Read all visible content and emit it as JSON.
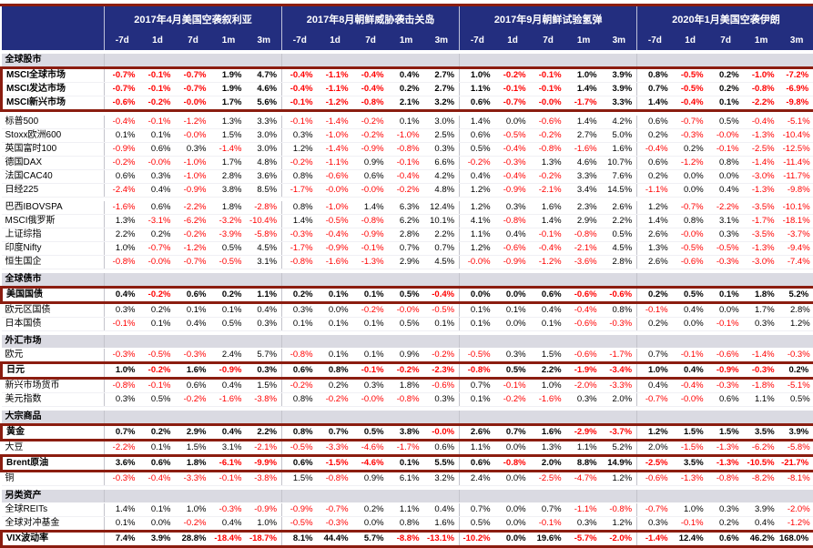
{
  "colors": {
    "header_bg": "#232E7F",
    "highlight_border": "#8B1D10",
    "negative_value": "#FF0000",
    "section_row_bg": "#DADAE2",
    "positive_value": "#000000"
  },
  "chart_data": {
    "type": "table",
    "events": [
      "2017年4月美国空袭叙利亚",
      "2017年8月朝鲜威胁袭击关岛",
      "2017年9月朝鲜试验氢弹",
      "2020年1月美国空袭伊朗"
    ],
    "periods": [
      "-7d",
      "1d",
      "7d",
      "1m",
      "3m"
    ],
    "sections": [
      {
        "label": "全球股市",
        "groups": [
          [
            {
              "label": "MSCI全球市场",
              "highlight": true,
              "values": [
                "-0.7%",
                "-0.1%",
                "-0.7%",
                "1.9%",
                "4.7%",
                "-0.4%",
                "-1.1%",
                "-0.4%",
                "0.4%",
                "2.7%",
                "1.0%",
                "-0.2%",
                "-0.1%",
                "1.0%",
                "3.9%",
                "0.8%",
                "-0.5%",
                "0.2%",
                "-1.0%",
                "-7.2%"
              ]
            },
            {
              "label": "MSCI发达市场",
              "highlight": true,
              "values": [
                "-0.7%",
                "-0.1%",
                "-0.7%",
                "1.9%",
                "4.6%",
                "-0.4%",
                "-1.1%",
                "-0.4%",
                "0.2%",
                "2.7%",
                "1.1%",
                "-0.1%",
                "-0.1%",
                "1.4%",
                "3.9%",
                "0.7%",
                "-0.5%",
                "0.2%",
                "-0.8%",
                "-6.9%"
              ]
            },
            {
              "label": "MSCI新兴市场",
              "highlight": true,
              "values": [
                "-0.6%",
                "-0.2%",
                "-0.0%",
                "1.7%",
                "5.6%",
                "-0.1%",
                "-1.2%",
                "-0.8%",
                "2.1%",
                "3.2%",
                "0.6%",
                "-0.7%",
                "-0.0%",
                "-1.7%",
                "3.3%",
                "1.4%",
                "-0.4%",
                "0.1%",
                "-2.2%",
                "-9.8%"
              ]
            }
          ],
          [
            {
              "label": "标普500",
              "highlight": false,
              "values": [
                "-0.4%",
                "-0.1%",
                "-1.2%",
                "1.3%",
                "3.3%",
                "-0.1%",
                "-1.4%",
                "-0.2%",
                "0.1%",
                "3.0%",
                "1.4%",
                "0.0%",
                "-0.6%",
                "1.4%",
                "4.2%",
                "0.6%",
                "-0.7%",
                "0.5%",
                "-0.4%",
                "-5.1%"
              ]
            },
            {
              "label": "Stoxx欧洲600",
              "highlight": false,
              "values": [
                "0.1%",
                "0.1%",
                "-0.0%",
                "1.5%",
                "3.0%",
                "0.3%",
                "-1.0%",
                "-0.2%",
                "-1.0%",
                "2.5%",
                "0.6%",
                "-0.5%",
                "-0.2%",
                "2.7%",
                "5.0%",
                "0.2%",
                "-0.3%",
                "-0.0%",
                "-1.3%",
                "-10.4%"
              ]
            },
            {
              "label": "英国富时100",
              "highlight": false,
              "values": [
                "-0.9%",
                "0.6%",
                "0.3%",
                "-1.4%",
                "3.0%",
                "1.2%",
                "-1.4%",
                "-0.9%",
                "-0.8%",
                "0.3%",
                "0.5%",
                "-0.4%",
                "-0.8%",
                "-1.6%",
                "1.6%",
                "-0.4%",
                "0.2%",
                "-0.1%",
                "-2.5%",
                "-12.5%"
              ]
            },
            {
              "label": "德国DAX",
              "highlight": false,
              "values": [
                "-0.2%",
                "-0.0%",
                "-1.0%",
                "1.7%",
                "4.8%",
                "-0.2%",
                "-1.1%",
                "0.9%",
                "-0.1%",
                "6.6%",
                "-0.2%",
                "-0.3%",
                "1.3%",
                "4.6%",
                "10.7%",
                "0.6%",
                "-1.2%",
                "0.8%",
                "-1.4%",
                "-11.4%"
              ]
            },
            {
              "label": "法国CAC40",
              "highlight": false,
              "values": [
                "0.6%",
                "0.3%",
                "-1.0%",
                "2.8%",
                "3.6%",
                "0.8%",
                "-0.6%",
                "0.6%",
                "-0.4%",
                "4.2%",
                "0.4%",
                "-0.4%",
                "-0.2%",
                "3.3%",
                "7.6%",
                "0.2%",
                "0.0%",
                "0.0%",
                "-3.0%",
                "-11.7%"
              ]
            },
            {
              "label": "日经225",
              "highlight": false,
              "values": [
                "-2.4%",
                "0.4%",
                "-0.9%",
                "3.8%",
                "8.5%",
                "-1.7%",
                "-0.0%",
                "-0.0%",
                "-0.2%",
                "4.8%",
                "1.2%",
                "-0.9%",
                "-2.1%",
                "3.4%",
                "14.5%",
                "-1.1%",
                "0.0%",
                "0.4%",
                "-1.3%",
                "-9.8%"
              ]
            }
          ],
          [
            {
              "label": "巴西IBOVSPA",
              "highlight": false,
              "values": [
                "-1.6%",
                "0.6%",
                "-2.2%",
                "1.8%",
                "-2.8%",
                "0.8%",
                "-1.0%",
                "1.4%",
                "6.3%",
                "12.4%",
                "1.2%",
                "0.3%",
                "1.6%",
                "2.3%",
                "2.6%",
                "1.2%",
                "-0.7%",
                "-2.2%",
                "-3.5%",
                "-10.1%"
              ]
            },
            {
              "label": "MSCI俄罗斯",
              "highlight": false,
              "values": [
                "1.3%",
                "-3.1%",
                "-6.2%",
                "-3.2%",
                "-10.4%",
                "1.4%",
                "-0.5%",
                "-0.8%",
                "6.2%",
                "10.1%",
                "4.1%",
                "-0.8%",
                "1.4%",
                "2.9%",
                "2.2%",
                "1.4%",
                "0.8%",
                "3.1%",
                "-1.7%",
                "-18.1%"
              ]
            },
            {
              "label": "上证综指",
              "highlight": false,
              "values": [
                "2.2%",
                "0.2%",
                "-0.2%",
                "-3.9%",
                "-5.8%",
                "-0.3%",
                "-0.4%",
                "-0.9%",
                "2.8%",
                "2.2%",
                "1.1%",
                "0.4%",
                "-0.1%",
                "-0.8%",
                "0.5%",
                "2.6%",
                "-0.0%",
                "0.3%",
                "-3.5%",
                "-3.7%"
              ]
            },
            {
              "label": "印度Nifty",
              "highlight": false,
              "values": [
                "1.0%",
                "-0.7%",
                "-1.2%",
                "0.5%",
                "4.5%",
                "-1.7%",
                "-0.9%",
                "-0.1%",
                "0.7%",
                "0.7%",
                "1.2%",
                "-0.6%",
                "-0.4%",
                "-2.1%",
                "4.5%",
                "1.3%",
                "-0.5%",
                "-0.5%",
                "-1.3%",
                "-9.4%"
              ]
            },
            {
              "label": "恒生国企",
              "highlight": false,
              "values": [
                "-0.8%",
                "-0.0%",
                "-0.7%",
                "-0.5%",
                "3.1%",
                "-0.8%",
                "-1.6%",
                "-1.3%",
                "2.9%",
                "4.5%",
                "-0.0%",
                "-0.9%",
                "-1.2%",
                "-3.6%",
                "2.8%",
                "2.6%",
                "-0.6%",
                "-0.3%",
                "-3.0%",
                "-7.4%"
              ]
            }
          ]
        ]
      },
      {
        "label": "全球债市",
        "groups": [
          [
            {
              "label": "美国国债",
              "highlight": true,
              "values": [
                "0.4%",
                "-0.2%",
                "0.6%",
                "0.2%",
                "1.1%",
                "0.2%",
                "0.1%",
                "0.1%",
                "0.5%",
                "-0.4%",
                "0.0%",
                "0.0%",
                "0.6%",
                "-0.6%",
                "-0.6%",
                "0.2%",
                "0.5%",
                "0.1%",
                "1.8%",
                "5.2%"
              ]
            },
            {
              "label": "欧元区国债",
              "highlight": false,
              "values": [
                "0.3%",
                "0.2%",
                "0.1%",
                "0.1%",
                "0.4%",
                "0.3%",
                "0.0%",
                "-0.2%",
                "-0.0%",
                "-0.5%",
                "0.1%",
                "0.1%",
                "0.4%",
                "-0.4%",
                "0.8%",
                "-0.1%",
                "0.4%",
                "0.0%",
                "1.7%",
                "2.8%"
              ]
            },
            {
              "label": "日本国债",
              "highlight": false,
              "values": [
                "-0.1%",
                "0.1%",
                "0.4%",
                "0.5%",
                "0.3%",
                "0.1%",
                "0.1%",
                "0.1%",
                "0.5%",
                "0.1%",
                "0.1%",
                "0.0%",
                "0.1%",
                "-0.6%",
                "-0.3%",
                "0.2%",
                "0.0%",
                "-0.1%",
                "0.3%",
                "1.2%"
              ]
            }
          ]
        ]
      },
      {
        "label": "外汇市场",
        "groups": [
          [
            {
              "label": "欧元",
              "highlight": false,
              "values": [
                "-0.3%",
                "-0.5%",
                "-0.3%",
                "2.4%",
                "5.7%",
                "-0.8%",
                "0.1%",
                "0.1%",
                "0.9%",
                "-0.2%",
                "-0.5%",
                "0.3%",
                "1.5%",
                "-0.6%",
                "-1.7%",
                "0.7%",
                "-0.1%",
                "-0.6%",
                "-1.4%",
                "-0.3%"
              ]
            },
            {
              "label": "日元",
              "highlight": true,
              "values": [
                "1.0%",
                "-0.2%",
                "1.6%",
                "-0.9%",
                "0.3%",
                "0.6%",
                "0.8%",
                "-0.1%",
                "-0.2%",
                "-2.3%",
                "-0.8%",
                "0.5%",
                "2.2%",
                "-1.9%",
                "-3.4%",
                "1.0%",
                "0.4%",
                "-0.9%",
                "-0.3%",
                "0.2%"
              ]
            },
            {
              "label": "新兴市场货币",
              "highlight": false,
              "values": [
                "-0.8%",
                "-0.1%",
                "0.6%",
                "0.4%",
                "1.5%",
                "-0.2%",
                "0.2%",
                "0.3%",
                "1.8%",
                "-0.6%",
                "0.7%",
                "-0.1%",
                "1.0%",
                "-2.0%",
                "-3.3%",
                "0.4%",
                "-0.4%",
                "-0.3%",
                "-1.8%",
                "-5.1%"
              ]
            },
            {
              "label": "美元指数",
              "highlight": false,
              "values": [
                "0.3%",
                "0.5%",
                "-0.2%",
                "-1.6%",
                "-3.8%",
                "0.8%",
                "-0.2%",
                "-0.0%",
                "-0.8%",
                "0.3%",
                "0.1%",
                "-0.2%",
                "-1.6%",
                "0.3%",
                "2.0%",
                "-0.7%",
                "-0.0%",
                "0.6%",
                "1.1%",
                "0.5%"
              ]
            }
          ]
        ]
      },
      {
        "label": "大宗商品",
        "groups": [
          [
            {
              "label": "黄金",
              "highlight": true,
              "values": [
                "0.7%",
                "0.2%",
                "2.9%",
                "0.4%",
                "2.2%",
                "0.8%",
                "0.7%",
                "0.5%",
                "3.8%",
                "-0.0%",
                "2.6%",
                "0.7%",
                "1.6%",
                "-2.9%",
                "-3.7%",
                "1.2%",
                "1.5%",
                "1.5%",
                "3.5%",
                "3.9%"
              ]
            },
            {
              "label": "大豆",
              "highlight": false,
              "values": [
                "-2.2%",
                "0.1%",
                "1.5%",
                "3.1%",
                "-2.1%",
                "-0.5%",
                "-3.3%",
                "-4.6%",
                "-1.7%",
                "0.6%",
                "1.1%",
                "0.0%",
                "1.3%",
                "1.1%",
                "5.2%",
                "2.0%",
                "-1.5%",
                "-1.3%",
                "-6.2%",
                "-5.8%"
              ]
            },
            {
              "label": "Brent原油",
              "highlight": true,
              "values": [
                "3.6%",
                "0.6%",
                "1.8%",
                "-6.1%",
                "-9.9%",
                "0.6%",
                "-1.5%",
                "-4.6%",
                "0.1%",
                "5.5%",
                "0.6%",
                "-0.8%",
                "2.0%",
                "8.8%",
                "14.9%",
                "-2.5%",
                "3.5%",
                "-1.3%",
                "-10.5%",
                "-21.7%"
              ]
            },
            {
              "label": "铜",
              "highlight": false,
              "values": [
                "-0.3%",
                "-0.4%",
                "-3.3%",
                "-0.1%",
                "-3.8%",
                "1.5%",
                "-0.8%",
                "0.9%",
                "6.1%",
                "3.2%",
                "2.4%",
                "0.0%",
                "-2.5%",
                "-4.7%",
                "1.2%",
                "-0.6%",
                "-1.3%",
                "-0.8%",
                "-8.2%",
                "-8.1%"
              ]
            }
          ]
        ]
      },
      {
        "label": "另类资产",
        "groups": [
          [
            {
              "label": "全球REITs",
              "highlight": false,
              "values": [
                "1.4%",
                "0.1%",
                "1.0%",
                "-0.3%",
                "-0.9%",
                "-0.9%",
                "-0.7%",
                "0.2%",
                "1.1%",
                "0.4%",
                "0.7%",
                "0.0%",
                "0.7%",
                "-1.1%",
                "-0.8%",
                "-0.7%",
                "1.0%",
                "0.3%",
                "3.9%",
                "-2.0%"
              ]
            },
            {
              "label": "全球对冲基金",
              "highlight": false,
              "values": [
                "0.1%",
                "0.0%",
                "-0.2%",
                "0.4%",
                "1.0%",
                "-0.5%",
                "-0.3%",
                "0.0%",
                "0.8%",
                "1.6%",
                "0.5%",
                "0.0%",
                "-0.1%",
                "0.3%",
                "1.2%",
                "0.3%",
                "-0.1%",
                "0.2%",
                "0.4%",
                "-1.2%"
              ]
            },
            {
              "label": "VIX波动率",
              "highlight": true,
              "values": [
                "7.4%",
                "3.9%",
                "28.8%",
                "-18.4%",
                "-18.7%",
                "8.1%",
                "44.4%",
                "5.7%",
                "-8.8%",
                "-13.1%",
                "-10.2%",
                "0.0%",
                "19.6%",
                "-5.7%",
                "-2.0%",
                "-1.4%",
                "12.4%",
                "0.6%",
                "46.2%",
                "168.0%"
              ]
            }
          ]
        ]
      }
    ]
  }
}
